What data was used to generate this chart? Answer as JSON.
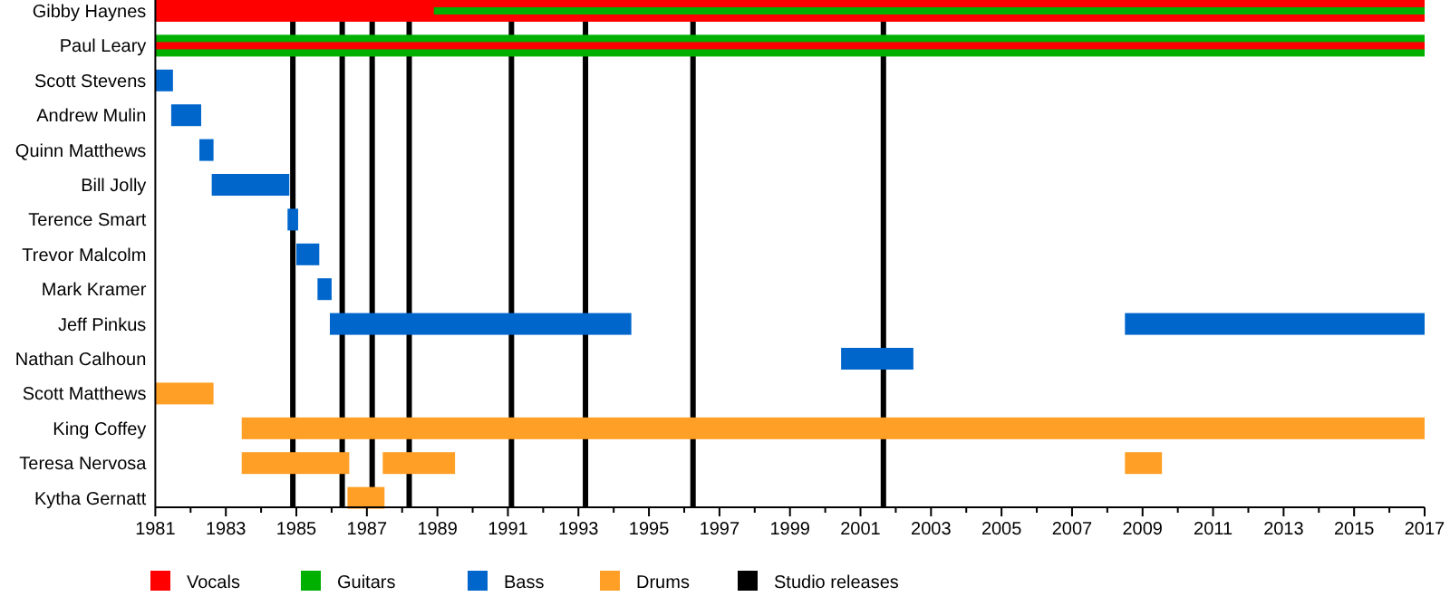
{
  "chart_data": {
    "type": "bar",
    "orientation": "horizontal",
    "legend": "bottom",
    "grid": false,
    "categories": [
      "Gibby Haynes",
      "Paul Leary",
      "Scott Stevens",
      "Andrew Mulin",
      "Quinn Matthews",
      "Bill Jolly",
      "Terence Smart",
      "Trevor Malcolm",
      "Mark Kramer",
      "Jeff Pinkus",
      "Nathan Calhoun",
      "Scott Matthews",
      "King Coffey",
      "Teresa Nervosa",
      "Kytha Gernatt"
    ],
    "xlim": [
      1981,
      2017
    ],
    "xticks": [
      1981,
      {
        "value": 1982,
        "label": null
      },
      1983,
      {
        "value": 1984,
        "label": null
      },
      1985,
      {
        "value": 1986,
        "label": null
      },
      1987,
      {
        "value": 1988,
        "label": null
      },
      1989,
      {
        "value": 1990,
        "label": null
      },
      1991,
      {
        "value": 1992,
        "label": null
      },
      1993,
      {
        "value": 1994,
        "label": null
      },
      1995,
      {
        "value": 1996,
        "label": null
      },
      1997,
      {
        "value": 1998,
        "label": null
      },
      1999,
      {
        "value": 2000,
        "label": null
      },
      2001,
      {
        "value": 2002,
        "label": null
      },
      2003,
      {
        "value": 2004,
        "label": null
      },
      2005,
      {
        "value": 2006,
        "label": null
      },
      2007,
      {
        "value": 2008,
        "label": null
      },
      2009,
      {
        "value": 2010,
        "label": null
      },
      2011,
      {
        "value": 2012,
        "label": null
      },
      2013,
      {
        "value": 2014,
        "label": null
      },
      2015,
      {
        "value": 2016,
        "label": null
      },
      2017
    ],
    "series": [
      {
        "name": "Vocals",
        "color": "#ff0000",
        "base": [
          1981,
          null,
          null,
          null,
          null,
          null,
          null,
          null,
          null,
          null,
          null,
          null,
          null,
          null,
          null
        ],
        "values": [
          36,
          null,
          null,
          null,
          null,
          null,
          null,
          null,
          null,
          null,
          null,
          null,
          null,
          null,
          null
        ]
      },
      {
        "name": "Guitars",
        "color": "#00b000",
        "base": [
          null,
          1981,
          null,
          null,
          null,
          null,
          null,
          null,
          null,
          null,
          null,
          null,
          null,
          null,
          null
        ],
        "values": [
          null,
          36,
          null,
          null,
          null,
          null,
          null,
          null,
          null,
          null,
          null,
          null,
          null,
          null,
          null
        ]
      },
      {
        "color": "#ff0000",
        "base": [
          null,
          1981,
          null,
          null,
          null,
          null,
          null,
          null,
          null,
          null,
          null,
          null,
          null,
          null,
          null
        ],
        "values": [
          null,
          36,
          null,
          null,
          null,
          null,
          null,
          null,
          null,
          null,
          null,
          null,
          null,
          null,
          null
        ]
      },
      {
        "color": "#00b000",
        "base": [
          1988.9,
          null,
          null,
          null,
          null,
          null,
          null,
          null,
          null,
          null,
          null,
          null,
          null,
          null,
          null
        ],
        "values": [
          28.1,
          null,
          null,
          null,
          null,
          null,
          null,
          null,
          null,
          null,
          null,
          null,
          null,
          null,
          null
        ]
      },
      {
        "name": "Bass",
        "color": "#0066cc",
        "base": [
          null,
          null,
          1981,
          1981.45,
          1982.25,
          1982.6,
          1984.75,
          1985,
          1985.6,
          1985.95,
          2000.45,
          null,
          null,
          null,
          null
        ],
        "values": [
          null,
          null,
          0.5,
          0.85,
          0.4,
          2.2,
          0.3,
          0.65,
          0.4,
          8.55,
          2.05,
          null,
          null,
          null,
          null
        ]
      },
      {
        "name": "Drums",
        "color": "#ff9f25",
        "base": [
          null,
          null,
          null,
          null,
          null,
          null,
          null,
          null,
          null,
          null,
          null,
          1981,
          1983.45,
          1983.45,
          1986.45
        ],
        "values": [
          null,
          null,
          null,
          null,
          null,
          null,
          null,
          null,
          null,
          null,
          null,
          1.65,
          33.55,
          3.05,
          1.05
        ]
      },
      {
        "color": "#0066cc",
        "base": [
          null,
          null,
          null,
          null,
          null,
          null,
          null,
          null,
          null,
          2008.5,
          null,
          null,
          null,
          null,
          null
        ],
        "values": [
          null,
          null,
          null,
          null,
          null,
          null,
          null,
          null,
          null,
          8.5,
          null,
          null,
          null,
          null,
          null
        ]
      },
      {
        "color": "#ff9f25",
        "base": [
          null,
          null,
          null,
          null,
          null,
          null,
          null,
          null,
          null,
          null,
          null,
          null,
          null,
          1987.45,
          null
        ],
        "values": [
          null,
          null,
          null,
          null,
          null,
          null,
          null,
          null,
          null,
          null,
          null,
          null,
          null,
          2.05,
          null
        ]
      },
      {
        "color": "#ff9f25",
        "base": [
          null,
          null,
          null,
          null,
          null,
          null,
          null,
          null,
          null,
          null,
          null,
          null,
          null,
          2008.5,
          null
        ],
        "values": [
          null,
          null,
          null,
          null,
          null,
          null,
          null,
          null,
          null,
          null,
          null,
          null,
          null,
          1.05,
          null
        ]
      }
    ],
    "ref_lines": [
      {
        "axis": "x",
        "value": 1984.9,
        "label": "Studio releases",
        "color": "#000000"
      },
      {
        "axis": "x",
        "value": 1986.3,
        "color": "#000000"
      },
      {
        "axis": "x",
        "value": 1987.15,
        "color": "#000000"
      },
      {
        "axis": "x",
        "value": 1988.2,
        "color": "#000000"
      },
      {
        "axis": "x",
        "value": 1991.1,
        "color": "#000000"
      },
      {
        "axis": "x",
        "value": 1993.2,
        "color": "#000000"
      },
      {
        "axis": "x",
        "value": 1996.25,
        "color": "#000000"
      },
      {
        "axis": "x",
        "value": 2001.65,
        "color": "#000000"
      }
    ]
  }
}
